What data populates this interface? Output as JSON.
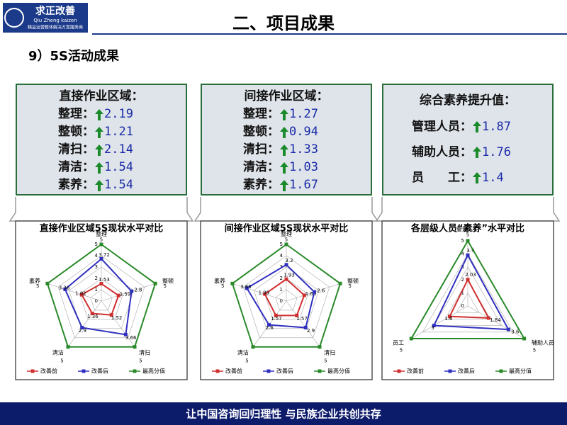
{
  "header": {
    "logo_title": "求正改善",
    "logo_sub": "Qiu Zheng kaizen",
    "logo_tagline": "精益运营整体解决方案服务商",
    "title": "二、项目成果"
  },
  "subtitle": "9）5S活动成果",
  "boxes": [
    {
      "title": "直接作业区域：",
      "rows": [
        {
          "label": "整理：",
          "value": 2.19
        },
        {
          "label": "整顿：",
          "value": 1.21
        },
        {
          "label": "清扫：",
          "value": 2.14
        },
        {
          "label": "清洁：",
          "value": 1.54
        },
        {
          "label": "素养：",
          "value": 1.54
        }
      ]
    },
    {
      "title": "间接作业区域：",
      "rows": [
        {
          "label": "整理：",
          "value": 1.27
        },
        {
          "label": "整顿：",
          "value": 0.94
        },
        {
          "label": "清扫：",
          "value": 1.33
        },
        {
          "label": "清洁：",
          "value": 1.03
        },
        {
          "label": "素养：",
          "value": 1.67
        }
      ]
    },
    {
      "title": "综合素养提升值：",
      "rows": [
        {
          "label": "管理人员：",
          "value": 1.87
        },
        {
          "label": "辅助人员：",
          "value": 1.76
        },
        {
          "label": "员　　工：",
          "value": 1.4
        }
      ]
    }
  ],
  "chart_data": [
    {
      "type": "radar",
      "title": "直接作业区域5S现状水平对比",
      "categories": [
        "整理",
        "整顿",
        "清扫",
        "清洁",
        "素养"
      ],
      "series": [
        {
          "name": "改善前",
          "color": "#d03030",
          "values": [
            1.53,
            1.59,
            1.52,
            1.36,
            1.82
          ]
        },
        {
          "name": "改善后",
          "color": "#3030c0",
          "values": [
            3.72,
            2.8,
            3.66,
            2.9,
            3.36
          ]
        },
        {
          "name": "最高分值",
          "color": "#2a8a2a",
          "values": [
            5,
            5,
            5,
            5,
            5
          ]
        }
      ],
      "rlim": [
        0,
        5
      ],
      "rticks": [
        0,
        1,
        2,
        3,
        4,
        5
      ]
    },
    {
      "type": "radar",
      "title": "间接作业区域5S现状水平对比",
      "categories": [
        "整理",
        "整顿",
        "清扫",
        "清洁",
        "素养"
      ],
      "series": [
        {
          "name": "改善前",
          "color": "#d03030",
          "values": [
            1.93,
            1.66,
            1.57,
            1.57,
            1.99
          ]
        },
        {
          "name": "改善后",
          "color": "#3030c0",
          "values": [
            3.2,
            2.6,
            2.9,
            2.6,
            3.66
          ]
        },
        {
          "name": "最高分值",
          "color": "#2a8a2a",
          "values": [
            5,
            5,
            5,
            5,
            5
          ]
        }
      ],
      "rlim": [
        0,
        5
      ],
      "rticks": [
        0,
        1,
        2,
        3,
        4,
        5
      ]
    },
    {
      "type": "radar",
      "title": "各层级人员“素养”水平对比",
      "categories": [
        "管理人员",
        "辅助人员",
        "员工"
      ],
      "series": [
        {
          "name": "改善前",
          "color": "#d03030",
          "values": [
            2.03,
            1.84,
            1.6
          ]
        },
        {
          "name": "改善后",
          "color": "#3030c0",
          "values": [
            3.9,
            3.6,
            3
          ]
        },
        {
          "name": "最高分值",
          "color": "#2a8a2a",
          "values": [
            5,
            5,
            5
          ]
        }
      ],
      "rlim": [
        0,
        5
      ],
      "rticks": [
        0,
        1,
        2,
        3,
        4,
        5
      ]
    }
  ],
  "footer": "让中国咨询回归理性 与民族企业共创共存"
}
